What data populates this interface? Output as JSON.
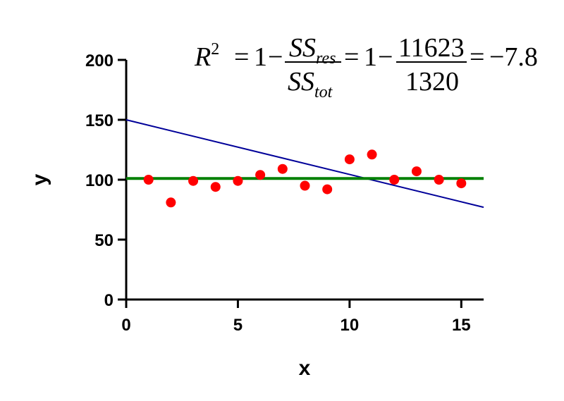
{
  "chart_data": {
    "type": "scatter",
    "xlabel": "x",
    "ylabel": "y",
    "xlim": [
      0,
      16
    ],
    "ylim": [
      0,
      200
    ],
    "xticks": [
      0,
      5,
      10,
      15
    ],
    "yticks": [
      0,
      50,
      100,
      150,
      200
    ],
    "grid": false,
    "points": {
      "color": "#ff0000",
      "x": [
        1,
        2,
        3,
        4,
        5,
        6,
        7,
        8,
        9,
        10,
        11,
        12,
        13,
        14,
        15
      ],
      "y": [
        100,
        81,
        99,
        94,
        99,
        104,
        109,
        95,
        92,
        117,
        121,
        100,
        107,
        100,
        97
      ]
    },
    "lines": [
      {
        "kind": "fit-line",
        "color": "#000099",
        "x": [
          0,
          16
        ],
        "y": [
          150,
          77
        ]
      },
      {
        "kind": "mean-line",
        "color": "#008000",
        "x": [
          0,
          16
        ],
        "y": [
          101,
          101
        ]
      }
    ],
    "annotation": {
      "r": "R",
      "sup": "2",
      "one": "1",
      "ss": "SS",
      "res": "res",
      "tot": "tot",
      "numerator": "11623",
      "denominator": "1320",
      "result": "−7.8"
    }
  }
}
